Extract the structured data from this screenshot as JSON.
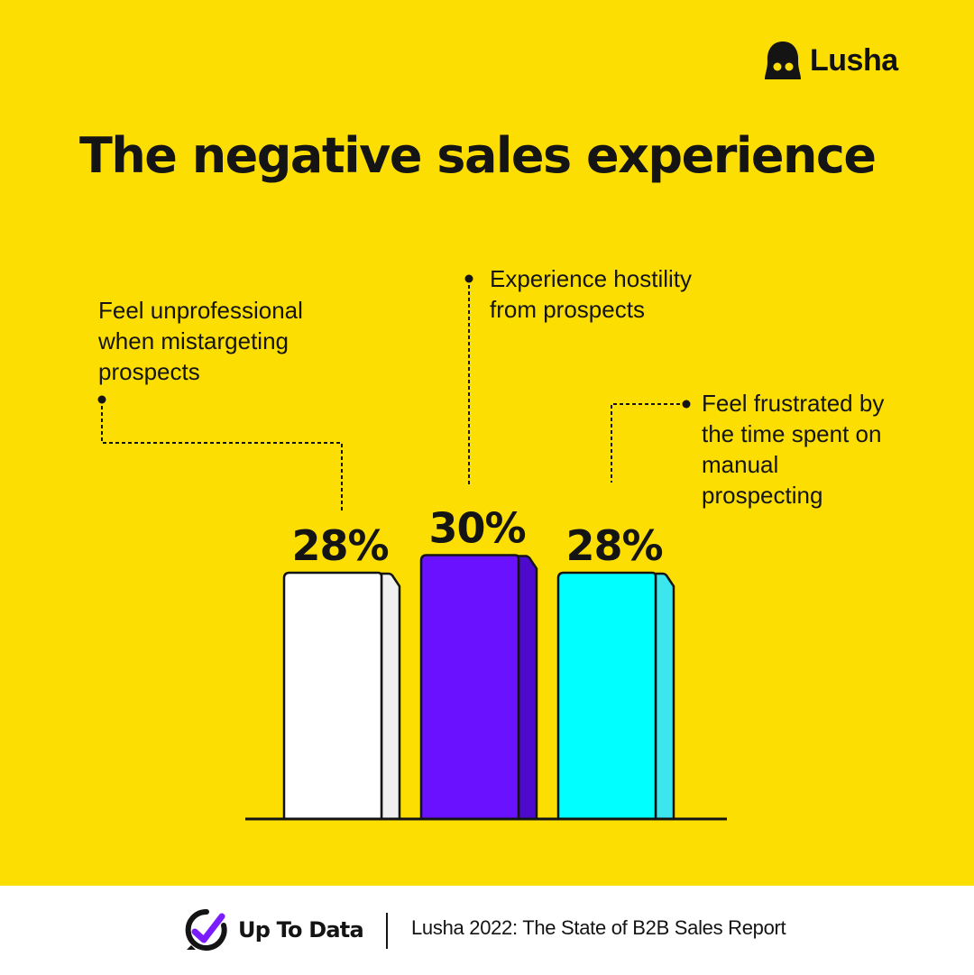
{
  "brand": {
    "name": "Lusha"
  },
  "title": "The negative sales experience",
  "chart_data": {
    "type": "bar",
    "categories": [
      "Feel unprofessional\nwhen mistargeting\nprospects",
      "Experience hostility\nfrom prospects",
      "Feel frustrated by\nthe time spent on\nmanual\nprospecting"
    ],
    "values": [
      28,
      30,
      28
    ],
    "value_labels": [
      "28%",
      "30%",
      "28%"
    ],
    "unit": "%",
    "colors": [
      "#FFFFFF",
      "#6A11FF",
      "#00FFFF"
    ],
    "side_colors": [
      "#F0F0F0",
      "#4E0ACC",
      "#3CE6EE"
    ],
    "background": "#FDDE02",
    "title": "The negative sales experience",
    "xlabel": "",
    "ylabel": "",
    "grid": false,
    "legend": "none"
  },
  "footer": {
    "brand_name": "Up To Data",
    "source": "Lusha 2022: The State of B2B Sales Report"
  }
}
